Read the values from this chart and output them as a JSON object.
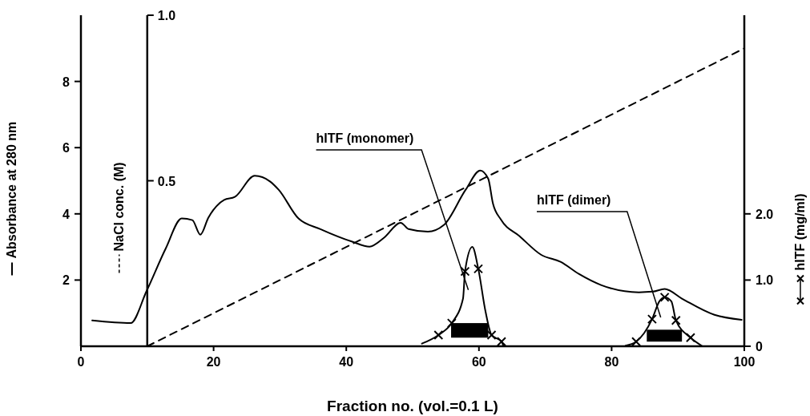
{
  "chart_data": {
    "type": "line",
    "xlabel": "Fraction no. (vol.=0.1 L)",
    "ylabel": "Absorbance at 280 nm",
    "y2label": "NaCl conc. (M)",
    "y3label": "hITF (mg/ml)",
    "xlim": [
      0,
      100
    ],
    "xticks": [
      0,
      20,
      40,
      60,
      80,
      100
    ],
    "ylim": [
      0,
      10
    ],
    "yticks": [
      2,
      4,
      6,
      8
    ],
    "y2lim": [
      0,
      1
    ],
    "y2ticks": [
      0.5,
      {
        "value": 1,
        "label": "1.0"
      }
    ],
    "y3lim": [
      0,
      5
    ],
    "y3ticks": [
      0,
      {
        "value": 1,
        "label": "1.0"
      },
      {
        "value": 2,
        "label": "2.0"
      }
    ],
    "grid": false,
    "annotations": [
      {
        "text": "hITF (monomer)",
        "x": 58.4,
        "y": 1.7
      },
      "hITF (dimer)"
    ],
    "series": [
      {
        "axis": "y",
        "color": "#000000",
        "line_style": "solid",
        "marker": "none",
        "x": [
          1.7,
          7.5,
          9.9,
          12.8,
          15.2,
          16.8,
          18.0,
          19.2,
          21.6,
          23.2,
          26.2,
          28.5,
          29.8,
          32.8,
          36.1,
          40.9,
          43.5,
          45.7,
          48.2,
          49.4,
          52.3,
          54.7,
          58.0,
          60.2,
          61.4,
          62.1,
          63.3,
          66.1,
          69.4,
          72.3,
          75.1,
          78.4,
          84.1,
          86.2,
          88.0,
          90.6,
          95.5,
          99.6
        ],
        "values": [
          0.78,
          0.7,
          1.67,
          2.96,
          3.86,
          3.81,
          3.37,
          3.88,
          4.42,
          4.51,
          5.15,
          4.98,
          4.73,
          3.86,
          3.54,
          3.16,
          3.01,
          3.28,
          3.73,
          3.54,
          3.46,
          3.66,
          4.73,
          5.31,
          5.06,
          4.32,
          3.83,
          3.33,
          2.76,
          2.55,
          2.18,
          1.85,
          1.63,
          1.65,
          1.73,
          1.44,
          0.95,
          0.8
        ]
      },
      {
        "axis": "y2",
        "color": "#000000",
        "line_style": "dashed",
        "marker": "none",
        "x": [
          10,
          100
        ],
        "values": [
          0,
          0.9
        ]
      },
      {
        "axis": "y3",
        "color": "#000000",
        "line_style": "solid",
        "marker": "none",
        "x": [
          51.4,
          53.9,
          55.9,
          57.6,
          57.9,
          59.0,
          59.9,
          61.0,
          61.9,
          63.4,
          63.7
        ],
        "values": [
          0.04,
          0.17,
          0.35,
          0.72,
          1.13,
          1.5,
          1.17,
          0.52,
          0.17,
          0.07,
          0
        ]
      },
      {
        "type": "scatter",
        "axis": "y3",
        "color": "#000000",
        "marker": "cross",
        "x": [
          53.9,
          55.9,
          57.9,
          59.9,
          61.9,
          63.4
        ],
        "values": [
          0.17,
          0.35,
          1.13,
          1.17,
          0.17,
          0.07
        ]
      },
      {
        "axis": "y3",
        "color": "#000000",
        "line_style": "solid",
        "marker": "none",
        "x": [
          82.1,
          83.7,
          86.1,
          87.2,
          88.0,
          89.0,
          89.7,
          91.9,
          93.7
        ],
        "values": [
          0.01,
          0.07,
          0.41,
          0.68,
          0.74,
          0.68,
          0.39,
          0.13,
          0
        ]
      },
      {
        "type": "scatter",
        "axis": "y3",
        "color": "#000000",
        "marker": "cross",
        "x": [
          83.7,
          86.1,
          88.0,
          89.7,
          91.9
        ],
        "values": [
          0.07,
          0.41,
          0.74,
          0.39,
          0.13
        ]
      }
    ]
  }
}
